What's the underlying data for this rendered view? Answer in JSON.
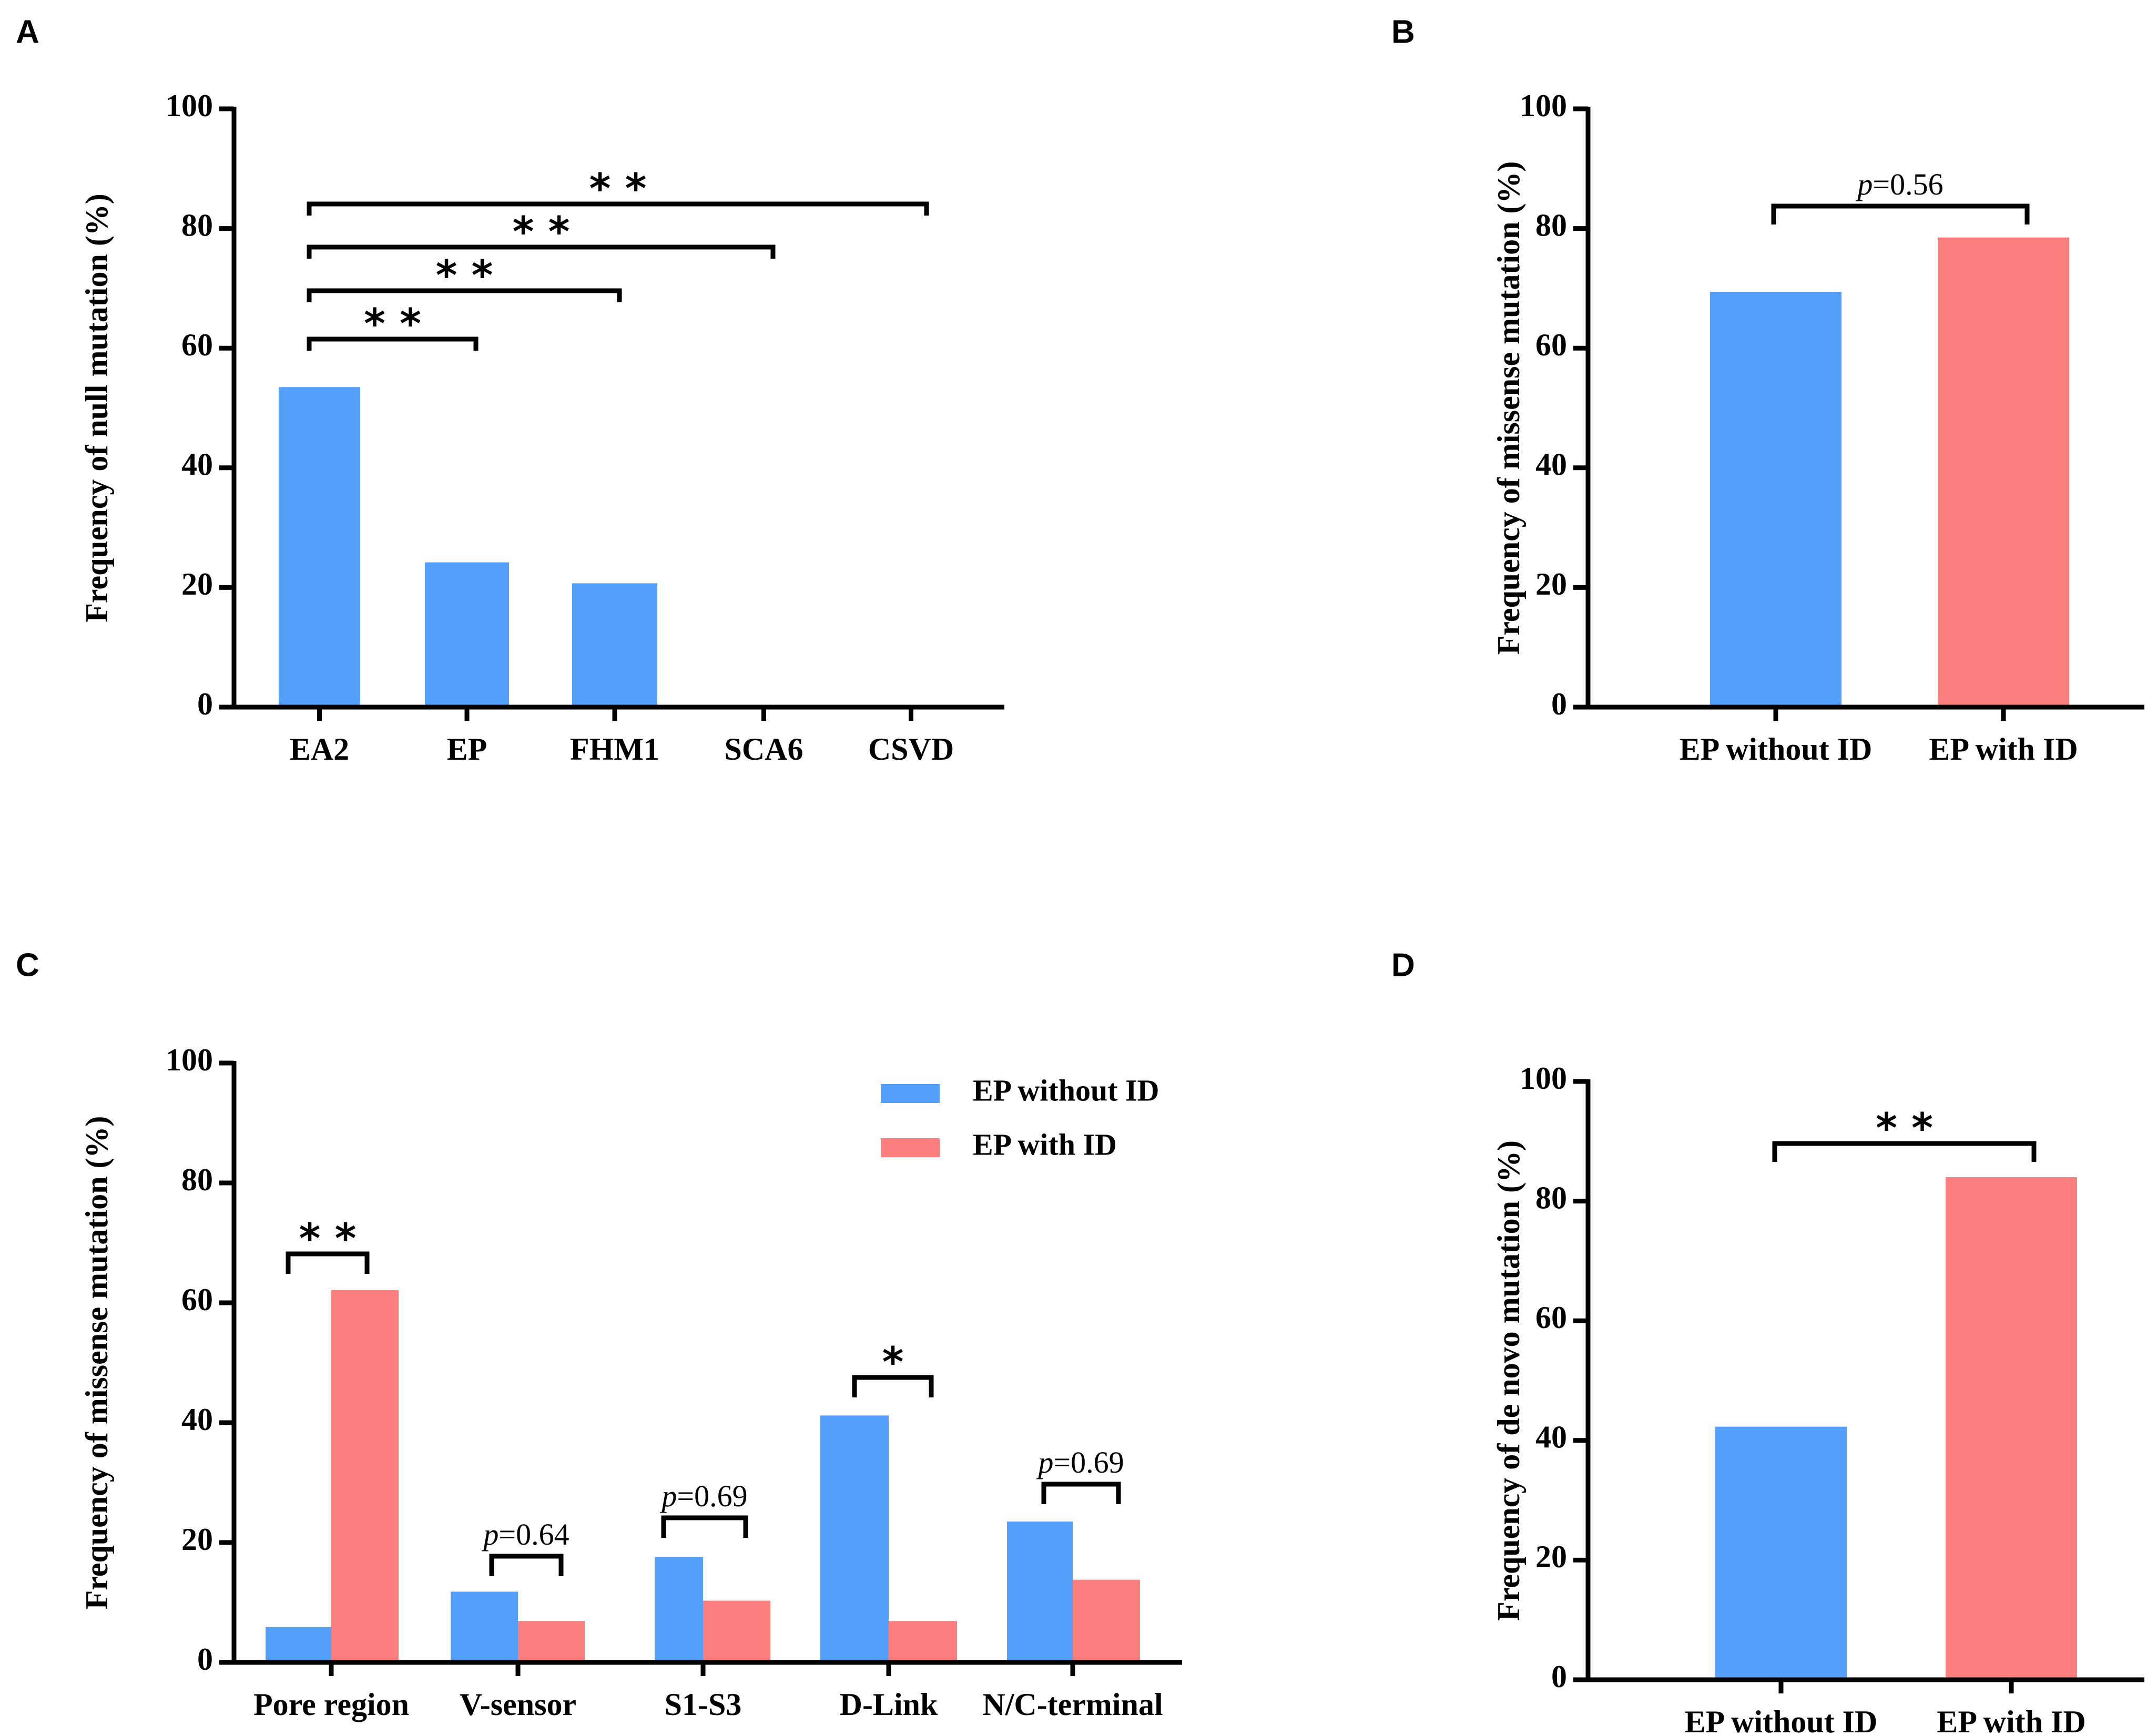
{
  "colors": {
    "blue": "#55a0fa",
    "red": "#fb7f7f",
    "axis": "#000000"
  },
  "chart_data": [
    {
      "panel": "A",
      "type": "bar",
      "categories": [
        "EA2",
        "EP",
        "FHM1",
        "SCA6",
        "CSVD"
      ],
      "values": [
        53.5,
        24.2,
        20.7,
        0,
        0
      ],
      "ylabel": "Frequency of null mutation (%)",
      "ylim": [
        0,
        100
      ],
      "yticks": [
        "0",
        "20",
        "40",
        "60",
        "80",
        "100"
      ],
      "significance": [
        {
          "from": "EA2",
          "to": "EP",
          "label": "* *"
        },
        {
          "from": "EA2",
          "to": "FHM1",
          "label": "* *"
        },
        {
          "from": "EA2",
          "to": "SCA6",
          "label": "* *"
        },
        {
          "from": "EA2",
          "to": "CSVD",
          "label": "* *"
        }
      ]
    },
    {
      "panel": "B",
      "type": "bar",
      "categories": [
        "EP without ID",
        "EP with ID"
      ],
      "values": [
        69.4,
        78.5
      ],
      "ylabel": "Frequency of missense mutation (%)",
      "ylim": [
        0,
        100
      ],
      "yticks": [
        "0",
        "20",
        "40",
        "60",
        "80",
        "100"
      ],
      "significance": [
        {
          "from": "EP without ID",
          "to": "EP with ID",
          "label_italic": "p",
          "label_rest": "=0.56"
        }
      ]
    },
    {
      "panel": "C",
      "type": "bar",
      "categories": [
        "Pore region",
        "V-sensor",
        "S1-S3",
        "D-Link",
        "N/C-terminal"
      ],
      "series": [
        {
          "name": "EP without ID",
          "values": [
            5.9,
            11.8,
            17.6,
            41.2,
            23.5
          ]
        },
        {
          "name": "EP with ID",
          "values": [
            62.1,
            6.9,
            10.3,
            6.9,
            13.8
          ]
        }
      ],
      "ylabel": "Frequency of missense mutation (%)",
      "ylim": [
        0,
        100
      ],
      "yticks": [
        "0",
        "20",
        "40",
        "60",
        "80",
        "100"
      ],
      "legend_position": "top-right",
      "significance": [
        {
          "category": "Pore region",
          "label": "* *"
        },
        {
          "category": "V-sensor",
          "label_italic": "p",
          "label_rest": "=0.64"
        },
        {
          "category": "S1-S3",
          "label_italic": "p",
          "label_rest": "=0.69"
        },
        {
          "category": "D-Link",
          "label": "*"
        },
        {
          "category": "N/C-terminal",
          "label_italic": "p",
          "label_rest": "=0.69"
        }
      ]
    },
    {
      "panel": "D",
      "type": "bar",
      "categories": [
        "EP without ID",
        "EP with ID"
      ],
      "values": [
        42.3,
        84
      ],
      "ylabel": "Frequency of de novo mutation (%)",
      "ylim": [
        0,
        100
      ],
      "yticks": [
        "0",
        "20",
        "40",
        "60",
        "80",
        "100"
      ],
      "significance": [
        {
          "from": "EP without ID",
          "to": "EP with ID",
          "label": "* *"
        }
      ]
    }
  ]
}
